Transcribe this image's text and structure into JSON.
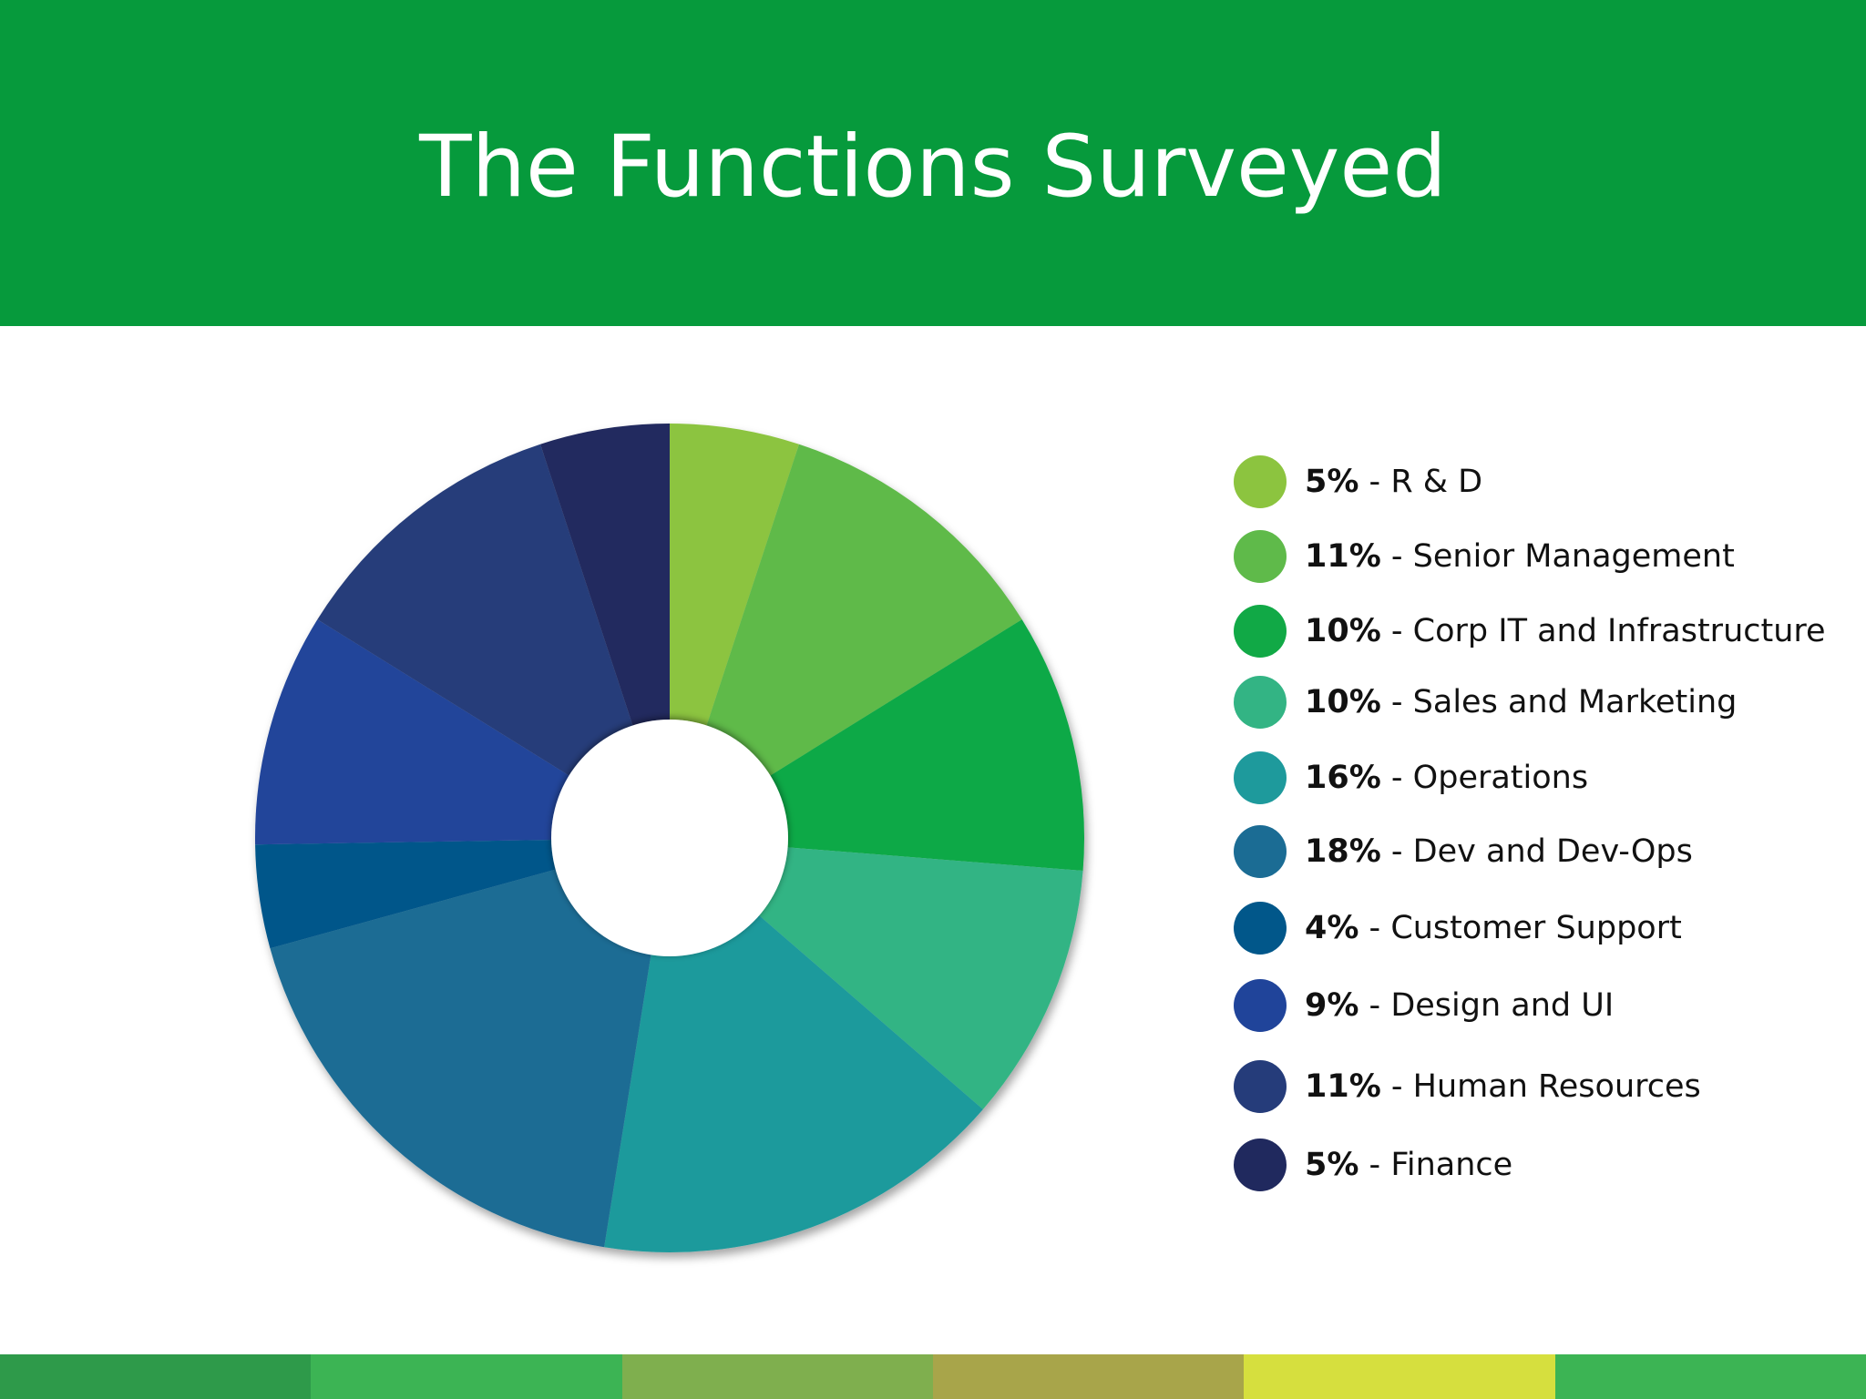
{
  "title": "The Functions Surveyed",
  "chart_data": {
    "type": "pie",
    "variant": "donut",
    "title": "",
    "legend_position": "right",
    "slices": [
      {
        "label": "R & D",
        "value": 5,
        "value_label": "5%",
        "color": "#8cc43f"
      },
      {
        "label": "Senior Management",
        "value": 11,
        "value_label": "11%",
        "color": "#5fba4a"
      },
      {
        "label": "Corp IT and Infrastructure",
        "value": 10,
        "value_label": "10%",
        "color": "#11a946"
      },
      {
        "label": "Sales and Marketing",
        "value": 10,
        "value_label": "10%",
        "color": "#33b484"
      },
      {
        "label": "Operations",
        "value": 16,
        "value_label": "16%",
        "color": "#1e9a9c"
      },
      {
        "label": "Dev and Dev-Ops",
        "value": 18,
        "value_label": "18%",
        "color": "#1b6c94"
      },
      {
        "label": "Customer Support",
        "value": 4,
        "value_label": "4%",
        "color": "#01578a"
      },
      {
        "label": "Design and UI",
        "value": 9,
        "value_label": "9%",
        "color": "#20449a"
      },
      {
        "label": "Human Resources",
        "value": 11,
        "value_label": "11%",
        "color": "#253c7a"
      },
      {
        "label": "Finance",
        "value": 5,
        "value_label": "5%",
        "color": "#20295e"
      }
    ]
  },
  "colors": {
    "header_bg": "#069a3c",
    "title_text": "#ffffff",
    "footer_segments": [
      "#2e9a4a",
      "#3cb454",
      "#7faf4e",
      "#a8a54a",
      "#d6df3e",
      "#3cb454"
    ]
  }
}
